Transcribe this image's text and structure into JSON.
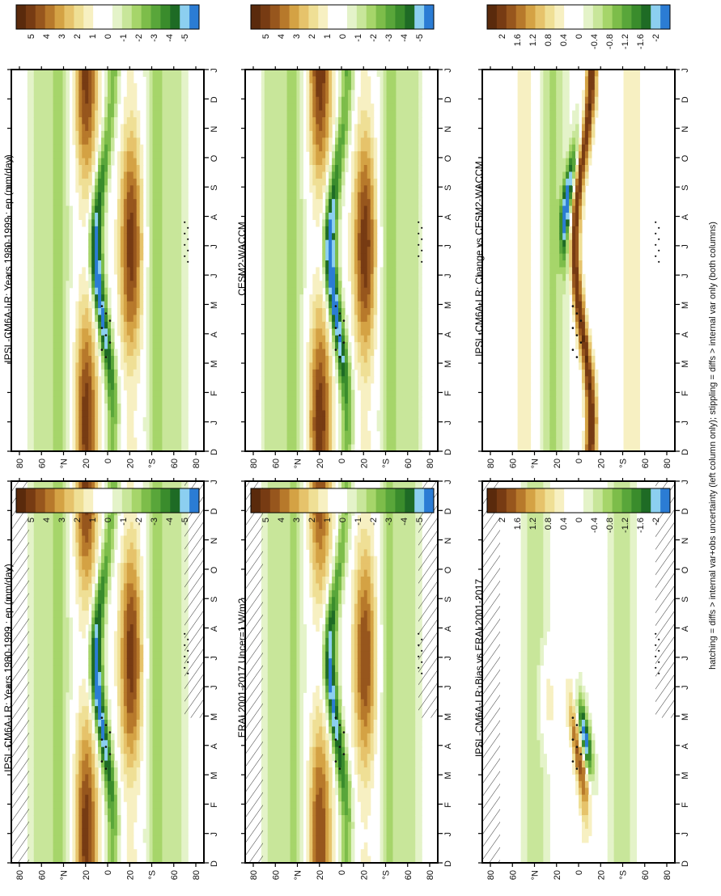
{
  "footer_note": "hatching = diffs > internal var+obs uncertainty (left column only); stippling = diffs > internal var only (both columns)",
  "colors": {
    "scale_mm": [
      "#2b7cd4",
      "#8ccff0",
      "#1e6b25",
      "#3a8c2c",
      "#59a63a",
      "#7dbd4a",
      "#a6d56a",
      "#c8e69a",
      "#e4f3c9",
      "#ffffff",
      "#ffffff",
      "#f7f0c2",
      "#efdf95",
      "#e6c36b",
      "#d4a244",
      "#b7792b",
      "#97561d",
      "#773b13",
      "#5a2a0c"
    ],
    "scale_diff": [
      "#2b7cd4",
      "#8ccff0",
      "#1e6b25",
      "#3a8c2c",
      "#59a63a",
      "#7dbd4a",
      "#a6d56a",
      "#c8e69a",
      "#e4f3c9",
      "#ffffff",
      "#ffffff",
      "#f7f0c2",
      "#efdf95",
      "#e6c36b",
      "#d4a244",
      "#b7792b",
      "#97561d",
      "#773b13",
      "#5a2a0c"
    ]
  },
  "colorbar_mm_labels": [
    "5",
    "4",
    "3",
    "2",
    "1",
    "0",
    "-1",
    "-2",
    "-3",
    "-4",
    "-5"
  ],
  "colorbar_diff_labels": [
    "2",
    "1.6",
    "1.2",
    "0.8",
    "0.4",
    "0",
    "-0.4",
    "-0.8",
    "-1.2",
    "-1.6",
    "-2"
  ],
  "lat_labels": [
    "80",
    "60",
    "°N",
    "20",
    "0",
    "20",
    "°S",
    "60",
    "80"
  ],
  "month_labels": [
    "D",
    "J",
    "F",
    "M",
    "A",
    "M",
    "J",
    "J",
    "A",
    "S",
    "O",
    "N",
    "D",
    "J"
  ],
  "chart_data": [
    {
      "type": "heatmap",
      "title": "IPSL-CM6A-LR: Years 1980-1999 : ep (mm/day)",
      "x": [
        "D",
        "J",
        "F",
        "M",
        "A",
        "M",
        "J",
        "J",
        "A",
        "S",
        "O",
        "N",
        "D",
        "J"
      ],
      "y": [
        "80",
        "60",
        "°N",
        "20",
        "0",
        "20",
        "°S",
        "60",
        "80"
      ],
      "zlim": [
        -5,
        5
      ],
      "hatching": true,
      "stippling": true
    },
    {
      "type": "heatmap",
      "title": "IPSL-CM6A-LR: Years 1980-1999 : ep (mm/day)",
      "x": [
        "D",
        "J",
        "F",
        "M",
        "A",
        "M",
        "J",
        "J",
        "A",
        "S",
        "O",
        "N",
        "D",
        "J"
      ],
      "y": [
        "80",
        "60",
        "°N",
        "20",
        "0",
        "20",
        "°S",
        "60",
        "80"
      ],
      "zlim": [
        -5,
        5
      ],
      "stippling": true
    },
    {
      "type": "heatmap",
      "title": "ERAI 2001-2017 Uncer=1 W/m2",
      "x": [
        "D",
        "J",
        "F",
        "M",
        "A",
        "M",
        "J",
        "J",
        "A",
        "S",
        "O",
        "N",
        "D",
        "J"
      ],
      "y": [
        "80",
        "60",
        "°N",
        "20",
        "0",
        "20",
        "°S",
        "60",
        "80"
      ],
      "zlim": [
        -5,
        5
      ],
      "hatching": true,
      "stippling": true
    },
    {
      "type": "heatmap",
      "title": "CESM2-WACCM",
      "x": [
        "D",
        "J",
        "F",
        "M",
        "A",
        "M",
        "J",
        "J",
        "A",
        "S",
        "O",
        "N",
        "D",
        "J"
      ],
      "y": [
        "80",
        "60",
        "°N",
        "20",
        "0",
        "20",
        "°S",
        "60",
        "80"
      ],
      "zlim": [
        -5,
        5
      ],
      "stippling": true
    },
    {
      "type": "heatmap",
      "title": "IPSL-CM6A-LR: Bias vs ERAI 2001-2017",
      "x": [
        "D",
        "J",
        "F",
        "M",
        "A",
        "M",
        "J",
        "J",
        "A",
        "S",
        "O",
        "N",
        "D",
        "J"
      ],
      "y": [
        "80",
        "60",
        "°N",
        "20",
        "0",
        "20",
        "°S",
        "60",
        "80"
      ],
      "zlim": [
        -2,
        2
      ],
      "hatching": true,
      "stippling": true
    },
    {
      "type": "heatmap",
      "title": "IPSL-CM6A-LR: Change vs CESM2-WACCM",
      "x": [
        "D",
        "J",
        "F",
        "M",
        "A",
        "M",
        "J",
        "J",
        "A",
        "S",
        "O",
        "N",
        "D",
        "J"
      ],
      "y": [
        "80",
        "60",
        "°N",
        "20",
        "0",
        "20",
        "°S",
        "60",
        "80"
      ],
      "zlim": [
        -2,
        2
      ],
      "stippling": true
    }
  ]
}
